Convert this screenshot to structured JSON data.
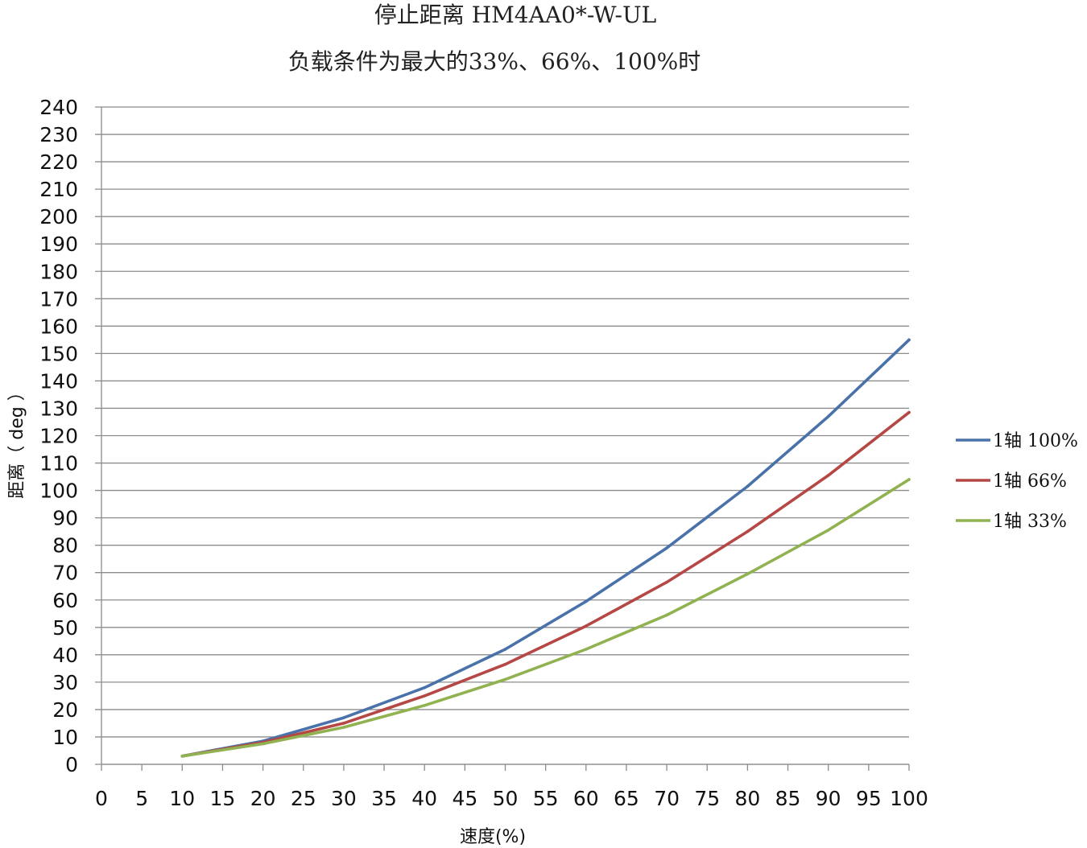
{
  "chart_data": {
    "type": "line",
    "title": "停止距离 HM4AA0*-W-UL",
    "subtitle": "负载条件为最大的33%、66%、100%时",
    "xlabel": "速度(%)",
    "ylabel": "距离（ deg ）",
    "xlim": [
      0,
      100
    ],
    "ylim": [
      0,
      240
    ],
    "x_ticks": [
      0,
      5,
      10,
      15,
      20,
      25,
      30,
      35,
      40,
      45,
      50,
      55,
      60,
      65,
      70,
      75,
      80,
      85,
      90,
      95,
      100
    ],
    "y_ticks": [
      0,
      10,
      20,
      30,
      40,
      50,
      60,
      70,
      80,
      90,
      100,
      110,
      120,
      130,
      140,
      150,
      160,
      170,
      180,
      190,
      200,
      210,
      220,
      230,
      240
    ],
    "grid": "horizontal",
    "legend_position": "right",
    "x": [
      10,
      20,
      30,
      40,
      50,
      60,
      70,
      80,
      90,
      100
    ],
    "series": [
      {
        "name": "1轴 100%",
        "color": "#4a72aa",
        "values": [
          3,
          8.5,
          17,
          28,
          42,
          59.5,
          79,
          101.5,
          127,
          155
        ]
      },
      {
        "name": "1轴 66%",
        "color": "#b54845",
        "values": [
          3,
          8,
          15,
          25,
          36.5,
          50.5,
          66.5,
          85,
          105.5,
          128.5
        ]
      },
      {
        "name": "1轴 33%",
        "color": "#90b251",
        "values": [
          3,
          7.5,
          13.5,
          21.5,
          31,
          42,
          54.5,
          69.5,
          85.5,
          104
        ]
      }
    ]
  }
}
